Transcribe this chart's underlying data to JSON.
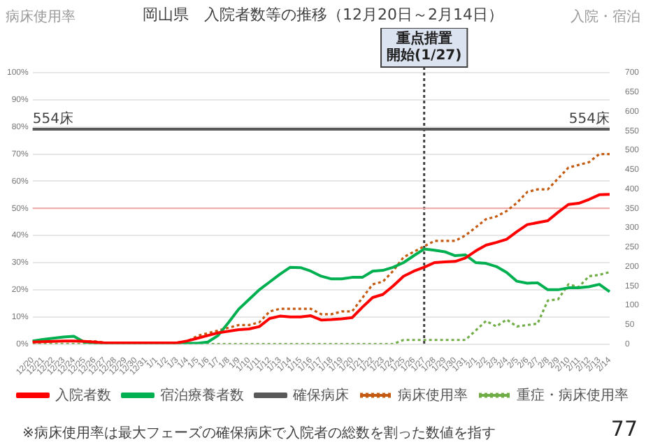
{
  "chart_data": {
    "type": "line",
    "title": "岡山県　入院者数等の推移（12月20日～2月14日）",
    "ylabel": "病床使用率",
    "y2label": "入院・宿泊",
    "categories": [
      "12/20",
      "12/21",
      "12/22",
      "12/23",
      "12/24",
      "12/25",
      "12/26",
      "12/27",
      "12/28",
      "12/29",
      "12/30",
      "12/31",
      "1/1",
      "1/2",
      "1/3",
      "1/4",
      "1/5",
      "1/6",
      "1/7",
      "1/8",
      "1/9",
      "1/10",
      "1/11",
      "1/12",
      "1/13",
      "1/14",
      "1/15",
      "1/16",
      "1/17",
      "1/18",
      "1/19",
      "1/20",
      "1/21",
      "1/22",
      "1/23",
      "1/24",
      "1/25",
      "1/26",
      "1/27",
      "1/28",
      "1/29",
      "1/30",
      "1/31",
      "2/1",
      "2/2",
      "2/3",
      "2/4",
      "2/5",
      "2/6",
      "2/7",
      "2/8",
      "2/9",
      "2/10",
      "2/11",
      "2/12",
      "2/13",
      "2/14"
    ],
    "series": [
      {
        "name": "入院者数",
        "color": "#ff0000",
        "axis": "y2",
        "line_style": "solid",
        "values": [
          5,
          6,
          7,
          8,
          8,
          7,
          5,
          3,
          3,
          3,
          3,
          3,
          3,
          3,
          3,
          8,
          15,
          22,
          29,
          33,
          37,
          39,
          45,
          66,
          72,
          70,
          70,
          73,
          62,
          63,
          65,
          68,
          95,
          120,
          128,
          150,
          175,
          188,
          198,
          210,
          212,
          213,
          222,
          240,
          255,
          262,
          270,
          290,
          308,
          313,
          318,
          340,
          360,
          363,
          373,
          385,
          386
        ]
      },
      {
        "name": "宿泊療養者数",
        "color": "#00b050",
        "axis": "y2",
        "line_style": "solid",
        "values": [
          8,
          12,
          15,
          18,
          20,
          5,
          3,
          2,
          2,
          2,
          2,
          2,
          2,
          2,
          2,
          2,
          2,
          5,
          22,
          55,
          90,
          115,
          140,
          160,
          180,
          198,
          197,
          188,
          175,
          168,
          168,
          172,
          172,
          188,
          190,
          198,
          210,
          228,
          245,
          242,
          238,
          228,
          230,
          210,
          208,
          200,
          185,
          162,
          157,
          158,
          140,
          140,
          145,
          145,
          148,
          154,
          135
        ]
      },
      {
        "name": "確保病床",
        "color": "#595959",
        "axis": "y2",
        "line_style": "solid",
        "values": [
          554,
          554,
          554,
          554,
          554,
          554,
          554,
          554,
          554,
          554,
          554,
          554,
          554,
          554,
          554,
          554,
          554,
          554,
          554,
          554,
          554,
          554,
          554,
          554,
          554,
          554,
          554,
          554,
          554,
          554,
          554,
          554,
          554,
          554,
          554,
          554,
          554,
          554,
          554,
          554,
          554,
          554,
          554,
          554,
          554,
          554,
          554,
          554,
          554,
          554,
          554,
          554,
          554,
          554,
          554,
          554,
          554
        ],
        "value_labels": [
          "554床",
          null,
          null,
          null,
          null,
          null,
          null,
          null,
          null,
          null,
          null,
          null,
          null,
          null,
          null,
          null,
          null,
          null,
          null,
          null,
          null,
          null,
          null,
          null,
          null,
          null,
          null,
          null,
          null,
          null,
          null,
          null,
          null,
          null,
          null,
          null,
          null,
          null,
          null,
          null,
          null,
          null,
          null,
          null,
          null,
          null,
          null,
          null,
          null,
          null,
          null,
          null,
          null,
          null,
          null,
          null,
          "554床"
        ]
      },
      {
        "name": "病床使用率",
        "color": "#c55a11",
        "axis": "y",
        "line_style": "dotted",
        "values": [
          1,
          1,
          1,
          1,
          1,
          1,
          1,
          0.5,
          0.5,
          0.5,
          0.5,
          0.5,
          0.5,
          0.5,
          0.5,
          1,
          3,
          4,
          5,
          6,
          7,
          7,
          8,
          12,
          13,
          13,
          13,
          13,
          11,
          11,
          12,
          12,
          17,
          22,
          23,
          27,
          32,
          34,
          36,
          38,
          38,
          38,
          40,
          43,
          46,
          47,
          49,
          52,
          56,
          57,
          57,
          61,
          65,
          66,
          67,
          70,
          70
        ]
      },
      {
        "name": "重症・病床使用率",
        "color": "#70ad47",
        "axis": "y",
        "line_style": "dotted",
        "values": [
          0,
          0,
          0,
          0,
          0,
          0,
          0,
          0,
          0,
          0,
          0,
          0,
          0,
          0,
          0,
          0,
          0,
          0,
          0,
          0,
          0,
          0,
          0,
          0,
          0,
          0,
          0,
          0,
          0,
          0,
          0,
          0,
          0,
          0,
          0,
          0,
          1.5,
          1.5,
          1.5,
          1.5,
          1.5,
          1.5,
          1.5,
          5,
          8.5,
          6.5,
          9,
          6.5,
          7,
          7.5,
          16,
          16.5,
          22,
          21,
          25,
          25.5,
          26.5
        ]
      }
    ],
    "ylim": [
      0,
      100
    ],
    "yticks": [
      {
        "value": 0,
        "label": "0%"
      },
      {
        "value": 10,
        "label": "10%"
      },
      {
        "value": 20,
        "label": "20%"
      },
      {
        "value": 30,
        "label": "30%"
      },
      {
        "value": 40,
        "label": "40%"
      },
      {
        "value": 50,
        "label": "50%"
      },
      {
        "value": 60,
        "label": "60%"
      },
      {
        "value": 70,
        "label": "70%"
      },
      {
        "value": 80,
        "label": "80%"
      },
      {
        "value": 90,
        "label": "90%"
      },
      {
        "value": 100,
        "label": "100%"
      }
    ],
    "y2lim": [
      0,
      700
    ],
    "y2ticks": [
      0,
      50,
      100,
      150,
      200,
      250,
      300,
      350,
      400,
      450,
      500,
      550,
      600,
      650,
      700
    ],
    "ref_lines": [
      {
        "axis": "x",
        "value": "1/27",
        "label": "重点措置開始(1/27)",
        "color": "#404040",
        "line_style": "dotted"
      },
      {
        "axis": "y",
        "value": 50,
        "color": "#f4a6a6",
        "line_style": "solid"
      }
    ],
    "annotations": [
      "※病床使用率は最大フェーズの確保病床で入院者の総数を割った数値を指す",
      "77"
    ],
    "grid": "y",
    "legend": "bottom",
    "marker": "none"
  }
}
